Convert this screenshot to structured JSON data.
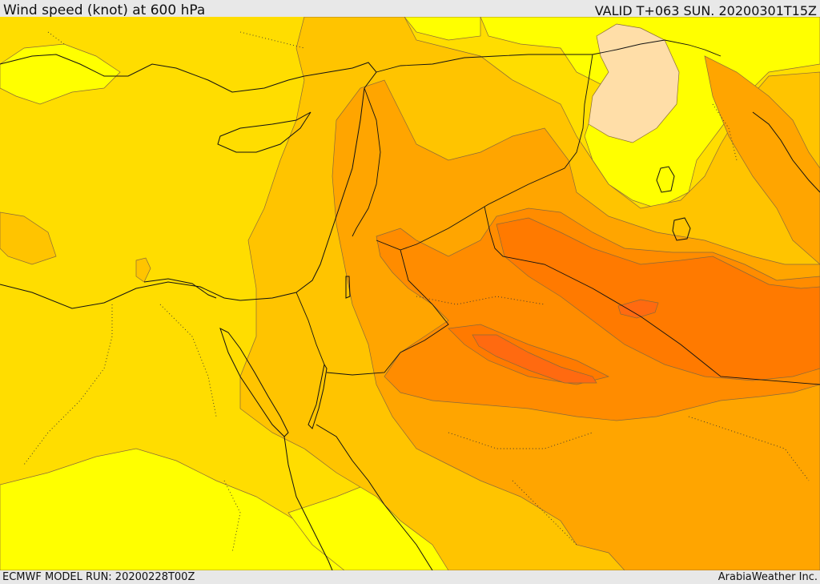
{
  "header": {
    "title": "Wind speed (knot) at 600 hPa",
    "valid_time": "VALID T+063 SUN. 20200301T15Z"
  },
  "footer": {
    "model_run": "ECMWF MODEL RUN: 20200228T00Z",
    "credit": "ArabiaWeather Inc."
  },
  "map": {
    "field": "wind-speed-600hPa",
    "palette": {
      "yellow": "#ffff00",
      "gold": "#ffdd00",
      "amber": "#ffc400",
      "orange_light": "#ffa500",
      "orange": "#ff8c00",
      "orange_dark": "#ff7a00",
      "red_orange": "#ff6a10",
      "pale": "#ffdea8"
    }
  }
}
